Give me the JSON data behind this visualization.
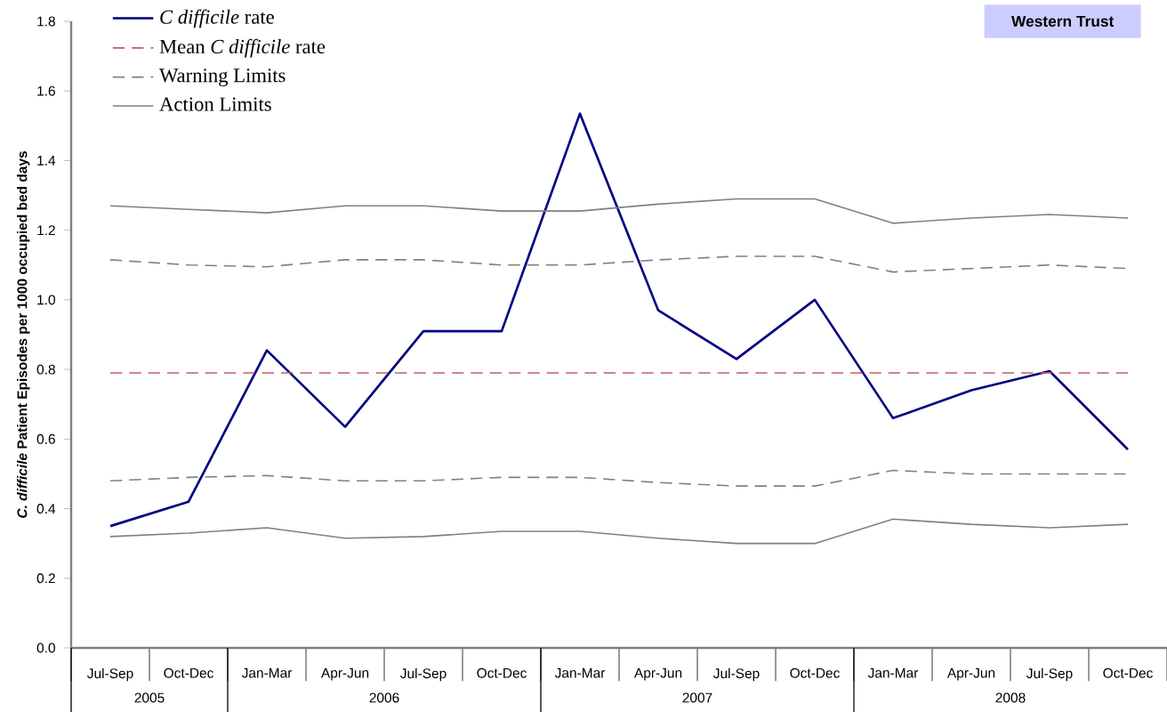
{
  "chart_data": {
    "type": "line",
    "title": "Western Trust",
    "ylabel": "*C. difficile* Patient Episodes per 1000 occupied bed days",
    "categories": [
      "Jul-Sep",
      "Oct-Dec",
      "Jan-Mar",
      "Apr-Jun",
      "Jul-Sep",
      "Oct-Dec",
      "Jan-Mar",
      "Apr-Jun",
      "Jul-Sep",
      "Oct-Dec",
      "Jan-Mar",
      "Apr-Jun",
      "Jul-Sep",
      "Oct-Dec"
    ],
    "series": [
      {
        "name": "*C difficile* rate",
        "color": "#000080",
        "line_style": "solid",
        "values": [
          0.35,
          0.42,
          0.855,
          0.635,
          0.91,
          0.91,
          1.535,
          0.97,
          0.83,
          1.0,
          0.66,
          0.74,
          0.795,
          0.57
        ]
      },
      {
        "name": "Mean *C difficile* rate",
        "color": "#c06060",
        "line_style": "dashed",
        "values": [
          0.79,
          0.79,
          0.79,
          0.79,
          0.79,
          0.79,
          0.79,
          0.79,
          0.79,
          0.79,
          0.79,
          0.79,
          0.79,
          0.79
        ]
      },
      {
        "name": "Warning Limits",
        "color": "#808080",
        "line_style": "dashed",
        "values": [
          1.115,
          1.1,
          1.095,
          1.115,
          1.115,
          1.1,
          1.1,
          1.115,
          1.125,
          1.125,
          1.08,
          1.09,
          1.1,
          1.09
        ]
      },
      {
        "color": "#808080",
        "line_style": "dashed",
        "values": [
          0.48,
          0.49,
          0.495,
          0.48,
          0.48,
          0.49,
          0.49,
          0.475,
          0.465,
          0.465,
          0.51,
          0.5,
          0.5,
          0.5
        ]
      },
      {
        "name": "Action Limits",
        "color": "#808080",
        "line_style": "solid",
        "values": [
          1.27,
          1.26,
          1.25,
          1.27,
          1.27,
          1.255,
          1.255,
          1.275,
          1.29,
          1.29,
          1.22,
          1.235,
          1.245,
          1.235
        ]
      },
      {
        "color": "#808080",
        "line_style": "solid",
        "values": [
          0.32,
          0.33,
          0.345,
          0.315,
          0.32,
          0.335,
          0.335,
          0.315,
          0.3,
          0.3,
          0.37,
          0.355,
          0.345,
          0.355
        ]
      }
    ],
    "ylim": [
      0,
      1.8
    ],
    "yticks": [
      {
        "value": 0,
        "label": "0.0"
      },
      {
        "value": 0.2,
        "label": "0.2"
      },
      {
        "value": 0.4,
        "label": "0.4"
      },
      {
        "value": 0.6,
        "label": "0.6"
      },
      {
        "value": 0.8,
        "label": "0.8"
      },
      {
        "value": 1.0,
        "label": "1.0"
      },
      {
        "value": 1.2,
        "label": "1.2"
      },
      {
        "value": 1.4,
        "label": "1.4"
      },
      {
        "value": 1.6,
        "label": "1.6"
      },
      {
        "value": 1.8,
        "label": "1.8"
      }
    ],
    "legend": "top left",
    "marker": "none",
    "annotations": [
      "2005",
      "2006",
      "2007",
      "2008"
    ]
  }
}
